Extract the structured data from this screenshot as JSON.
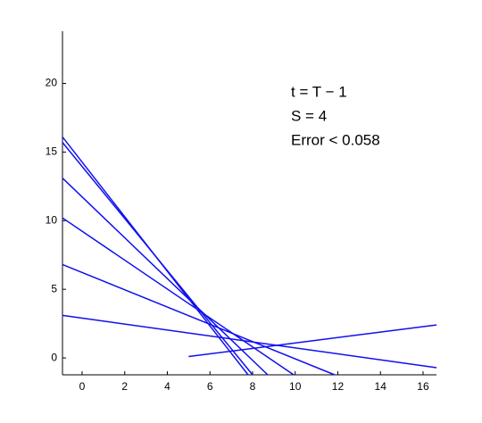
{
  "chart_data": {
    "type": "line",
    "color": "#1010ee",
    "annotations": [
      "t = T − 1",
      "S = 4",
      "Error < 0.058"
    ],
    "series": [
      {
        "x": [
          -0.92,
          7.79
        ],
        "values": [
          16.1,
          -1.23
        ]
      },
      {
        "x": [
          -0.92,
          8.0
        ],
        "values": [
          15.7,
          -1.23
        ]
      },
      {
        "x": [
          -0.92,
          8.71
        ],
        "values": [
          13.1,
          -1.23
        ]
      },
      {
        "x": [
          -0.92,
          9.93
        ],
        "values": [
          10.2,
          -1.23
        ]
      },
      {
        "x": [
          -0.92,
          11.85
        ],
        "values": [
          6.8,
          -1.23
        ]
      },
      {
        "x": [
          -0.92,
          16.63
        ],
        "values": [
          3.1,
          -0.71
        ]
      },
      {
        "x": [
          5,
          16.63
        ],
        "values": [
          0.1,
          2.4
        ]
      }
    ],
    "xlim": [
      -0.92,
      16.63
    ],
    "ylim": [
      -1.23,
      23.8
    ],
    "xticks": [
      0,
      2,
      4,
      6,
      8,
      10,
      12,
      14,
      16
    ],
    "yticks": [
      0,
      5,
      10,
      15,
      20
    ]
  }
}
